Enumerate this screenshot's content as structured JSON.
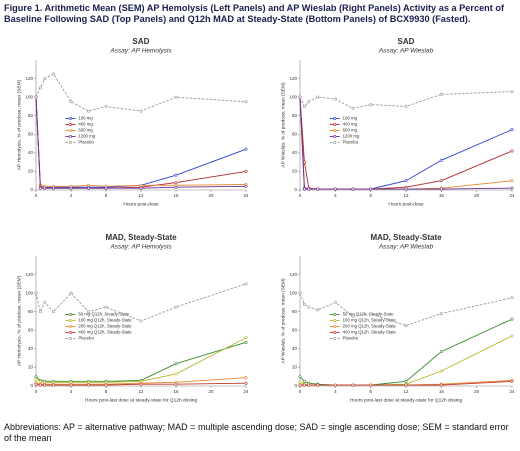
{
  "title": "Figure 1. Arithmetic Mean (SEM) AP Hemolysis (Left Panels) and AP Wieslab (Right Panels) Activity as a Percent of Baseline Following  SAD (Top Panels) and Q12h MAD at Steady-State (Bottom Panels) of BCX9930 (Fasted).",
  "footnote": "Abbreviations: AP = alternative pathway; MAD = multiple ascending dose; SAD = single ascending dose; SEM = standard error of the mean",
  "chart_data": [
    {
      "type": "line",
      "title": "SAD",
      "subtitle": "Assay: AP Hemolysis",
      "x_label": "Hours post-dose",
      "y_label": "AP Hemolysis, % of predose, mean (SEM)",
      "x": [
        0,
        0.5,
        1,
        2,
        4,
        6,
        8,
        12,
        16,
        24
      ],
      "xlim": [
        0,
        24
      ],
      "xticks": [
        0,
        4,
        8,
        12,
        16,
        20,
        24
      ],
      "ylim": [
        0,
        140
      ],
      "yticks": [
        0,
        20,
        40,
        60,
        80,
        100,
        120
      ],
      "legend": "left",
      "series": [
        {
          "name": "100 mg",
          "color": "#2b3fd6",
          "values": [
            100,
            5,
            3,
            3,
            3,
            3,
            3,
            5,
            16,
            44
          ]
        },
        {
          "name": "400 mg",
          "color": "#b0262a",
          "values": [
            100,
            3,
            2,
            2,
            2,
            2,
            2,
            3,
            8,
            20
          ]
        },
        {
          "name": "600 mg",
          "color": "#e8862a",
          "values": [
            100,
            5,
            4,
            4,
            4,
            5,
            4,
            5,
            5,
            6
          ]
        },
        {
          "name": "1200 mg",
          "color": "#6a2c91",
          "values": [
            100,
            2,
            2,
            2,
            2,
            2,
            2,
            2,
            3,
            4
          ]
        },
        {
          "name": "Placebo",
          "color": "#999999",
          "dashed": true,
          "values": [
            100,
            110,
            120,
            125,
            95,
            85,
            90,
            85,
            100,
            95
          ]
        }
      ]
    },
    {
      "type": "line",
      "title": "SAD",
      "subtitle": "Assay: AP Wieslab",
      "x_label": "Hours post-dose",
      "y_label": "AP Wieslab, % of predose, mean (SEM)",
      "x": [
        0,
        0.5,
        1,
        2,
        4,
        6,
        8,
        12,
        16,
        24
      ],
      "xlim": [
        0,
        24
      ],
      "xticks": [
        0,
        4,
        8,
        12,
        16,
        20,
        24
      ],
      "ylim": [
        0,
        140
      ],
      "yticks": [
        0,
        20,
        40,
        60,
        80,
        100,
        120
      ],
      "legend": "left",
      "series": [
        {
          "name": "100 mg",
          "color": "#2b3fd6",
          "values": [
            100,
            2,
            1,
            1,
            1,
            1,
            1,
            10,
            32,
            65
          ]
        },
        {
          "name": "400 mg",
          "color": "#b0262a",
          "values": [
            100,
            30,
            2,
            1,
            1,
            1,
            1,
            3,
            10,
            42
          ]
        },
        {
          "name": "600 mg",
          "color": "#e8862a",
          "values": [
            100,
            1,
            1,
            1,
            1,
            1,
            1,
            1,
            2,
            10
          ]
        },
        {
          "name": "1200 mg",
          "color": "#6a2c91",
          "values": [
            100,
            1,
            1,
            1,
            1,
            1,
            1,
            1,
            1,
            2
          ]
        },
        {
          "name": "Placebo",
          "color": "#999999",
          "dashed": true,
          "values": [
            100,
            90,
            95,
            100,
            98,
            88,
            92,
            90,
            103,
            106
          ]
        }
      ]
    },
    {
      "type": "line",
      "title": "MAD, Steady-State",
      "subtitle": "Assay: AP Hemolysis",
      "x_label": "Hours post-last dose at steady-state for Q12h dosing",
      "y_label": "AP Hemolysis, % of predose, mean (SEM)",
      "x": [
        0,
        0.5,
        1,
        2,
        4,
        6,
        8,
        12,
        16,
        24
      ],
      "xlim": [
        0,
        24
      ],
      "xticks": [
        0,
        4,
        8,
        12,
        16,
        20,
        24
      ],
      "ylim": [
        0,
        140
      ],
      "yticks": [
        0,
        20,
        40,
        60,
        80,
        100,
        120
      ],
      "legend": "left",
      "series": [
        {
          "name": "50 mg Q12h, Steady-State",
          "color": "#3a8a2e",
          "values": [
            10,
            6,
            5,
            5,
            5,
            5,
            5,
            6,
            24,
            47
          ]
        },
        {
          "name": "100 mg Q12h, Steady-State",
          "color": "#b5b82a",
          "values": [
            7,
            5,
            4,
            4,
            4,
            4,
            4,
            5,
            13,
            52
          ]
        },
        {
          "name": "200 mg Q12h, Steady-State",
          "color": "#e8862a",
          "values": [
            3,
            2,
            2,
            2,
            2,
            2,
            2,
            3,
            4,
            9
          ]
        },
        {
          "name": "400 mg Q12h, Steady-State",
          "color": "#c0392b",
          "values": [
            2,
            1,
            1,
            1,
            1,
            1,
            1,
            2,
            2,
            3
          ]
        },
        {
          "name": "Placebo",
          "color": "#999999",
          "dashed": true,
          "values": [
            100,
            80,
            90,
            80,
            100,
            80,
            85,
            70,
            85,
            110
          ]
        }
      ]
    },
    {
      "type": "line",
      "title": "MAD, Steady-State",
      "subtitle": "Assay: AP Wieslab",
      "x_label": "Hours post-last dose at steady-state for Q12h dosing",
      "y_label": "AP Wieslab, % of predose, mean (SEM)",
      "x": [
        0,
        0.5,
        1,
        2,
        4,
        6,
        8,
        12,
        16,
        24
      ],
      "xlim": [
        0,
        24
      ],
      "xticks": [
        0,
        4,
        8,
        12,
        16,
        20,
        24
      ],
      "ylim": [
        0,
        140
      ],
      "yticks": [
        0,
        20,
        40,
        60,
        80,
        100,
        120
      ],
      "legend": "left",
      "series": [
        {
          "name": "50 mg Q12h, Steady-State",
          "color": "#3a8a2e",
          "values": [
            10,
            5,
            3,
            2,
            1,
            1,
            1,
            5,
            37,
            72
          ]
        },
        {
          "name": "100 mg Q12h, Steady-State",
          "color": "#b5b82a",
          "values": [
            4,
            2,
            1,
            1,
            1,
            1,
            1,
            2,
            16,
            54
          ]
        },
        {
          "name": "200 mg Q12h, Steady-State",
          "color": "#e8862a",
          "values": [
            1,
            1,
            1,
            1,
            1,
            1,
            1,
            1,
            2,
            6
          ]
        },
        {
          "name": "400 mg Q12h, Steady-State",
          "color": "#c0392b",
          "values": [
            1,
            1,
            1,
            1,
            1,
            1,
            1,
            1,
            1,
            5
          ]
        },
        {
          "name": "Placebo",
          "color": "#999999",
          "dashed": true,
          "values": [
            100,
            88,
            85,
            82,
            90,
            75,
            78,
            65,
            78,
            95
          ]
        }
      ]
    }
  ]
}
